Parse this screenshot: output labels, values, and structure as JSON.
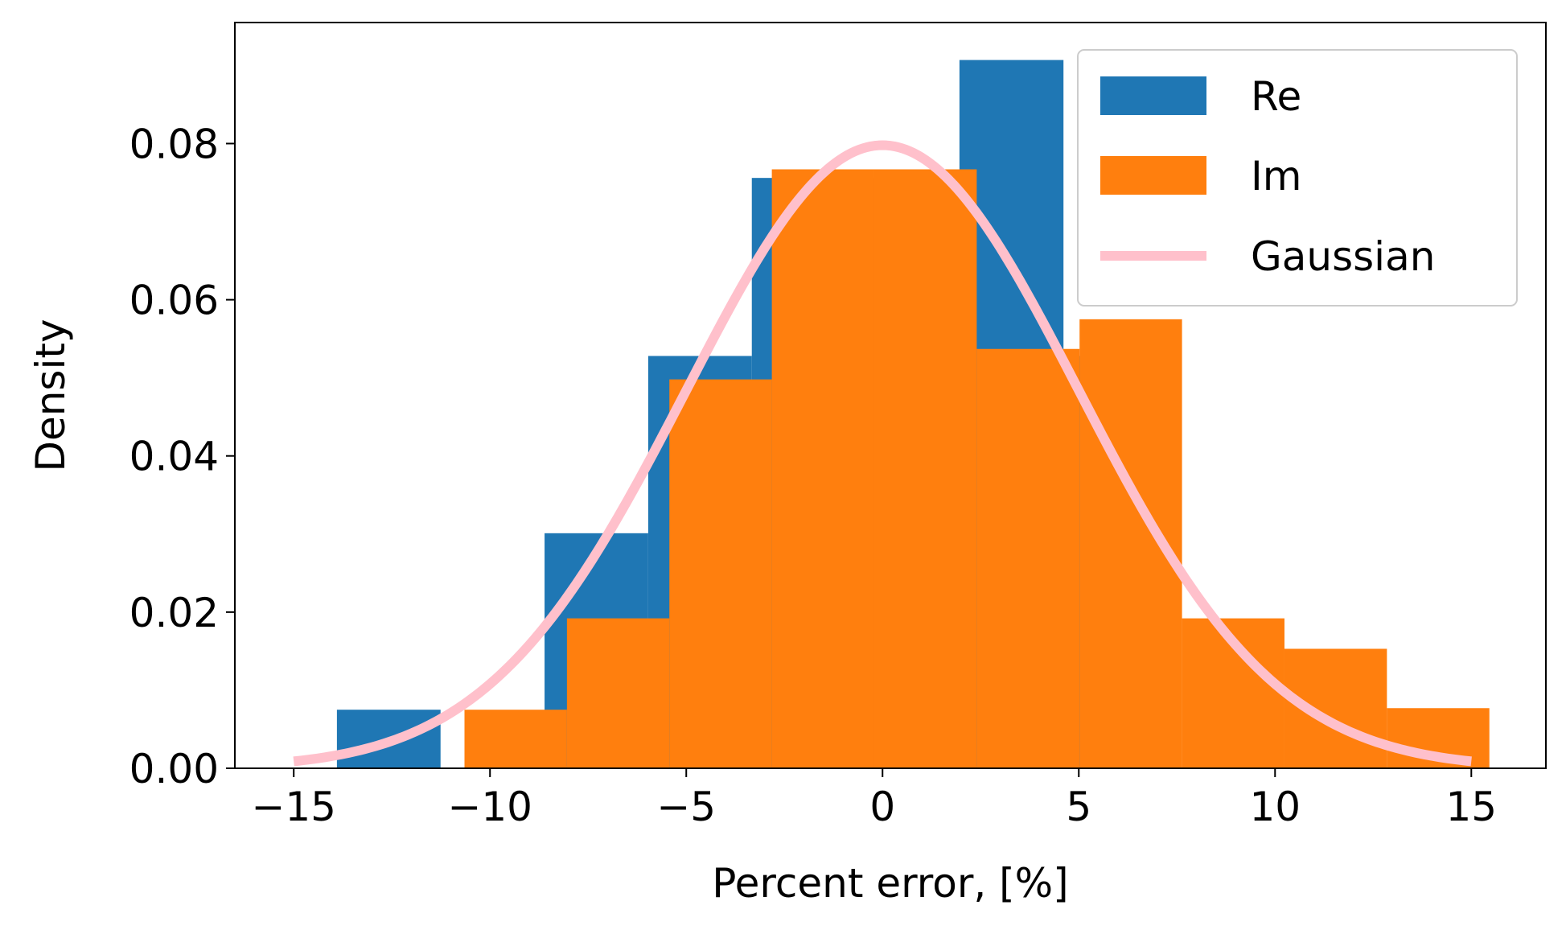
{
  "chart_data": {
    "type": "bar",
    "xlabel": "Percent error, [%]",
    "ylabel": "Density",
    "xlim": [
      -16.5,
      16.9
    ],
    "ylim": [
      0,
      0.0955
    ],
    "xticks": [
      -15,
      -10,
      -5,
      0,
      5,
      10,
      15
    ],
    "xtick_labels": [
      "−15",
      "−10",
      "−5",
      "0",
      "5",
      "10",
      "15"
    ],
    "yticks": [
      0,
      0.02,
      0.04,
      0.06,
      0.08
    ],
    "ytick_labels": [
      "0.00",
      "0.02",
      "0.04",
      "0.06",
      "0.08"
    ],
    "grid": false,
    "legend_position": "upper right",
    "series": [
      {
        "name": "Re",
        "kind": "histogram",
        "color": "#1f77b4",
        "bin_edges": [
          -13.9,
          -11.26,
          -8.61,
          -5.97,
          -3.33,
          -0.68,
          1.96,
          4.61,
          7.25
        ],
        "values": [
          0.0075,
          0.0,
          0.0301,
          0.0528,
          0.0756,
          0.0756,
          0.0907,
          0.0528
        ]
      },
      {
        "name": "Im",
        "kind": "histogram",
        "color": "#ff7f0e",
        "bin_edges": [
          -10.65,
          -8.04,
          -5.43,
          -2.82,
          -0.21,
          2.4,
          5.02,
          7.63,
          10.24,
          12.85,
          15.46
        ],
        "values": [
          0.0075,
          0.0192,
          0.0498,
          0.0767,
          0.0767,
          0.0537,
          0.0575,
          0.0192,
          0.0153,
          0.0077
        ]
      },
      {
        "name": "Gaussian",
        "kind": "line",
        "color": "#ffc0cb",
        "x_range": [
          -15,
          15
        ],
        "mean": 0,
        "std": 5
      }
    ]
  }
}
